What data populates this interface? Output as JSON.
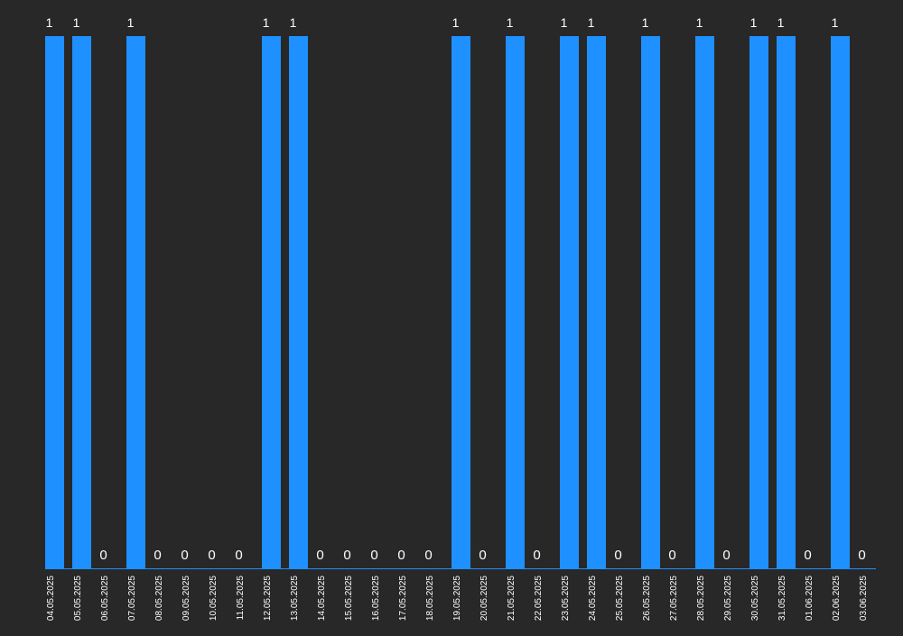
{
  "chart_data": {
    "type": "bar",
    "categories": [
      "04.05.2025",
      "05.05.2025",
      "06.05.2025",
      "07.05.2025",
      "08.05.2025",
      "09.05.2025",
      "10.05.2025",
      "11.05.2025",
      "12.05.2025",
      "13.05.2025",
      "14.05.2025",
      "15.05.2025",
      "16.05.2025",
      "17.05.2025",
      "18.05.2025",
      "19.05.2025",
      "20.05.2025",
      "21.05.2025",
      "22.05.2025",
      "23.05.2025",
      "24.05.2025",
      "25.05.2025",
      "26.05.2025",
      "27.05.2025",
      "28.05.2025",
      "29.05.2025",
      "30.05.2025",
      "31.05.2025",
      "01.06.2025",
      "02.06.2025",
      "03.06.2025"
    ],
    "values": [
      1,
      1,
      0,
      1,
      0,
      0,
      0,
      0,
      1,
      1,
      0,
      0,
      0,
      0,
      0,
      1,
      0,
      1,
      0,
      1,
      1,
      0,
      1,
      0,
      1,
      0,
      1,
      1,
      0,
      1,
      0
    ],
    "ylim": [
      0,
      1
    ],
    "grid": false,
    "legend": "none",
    "colors": {
      "background": "#282828",
      "bar": "#1e90ff",
      "axis": "#1e90ff",
      "text": "#ffffff"
    }
  }
}
